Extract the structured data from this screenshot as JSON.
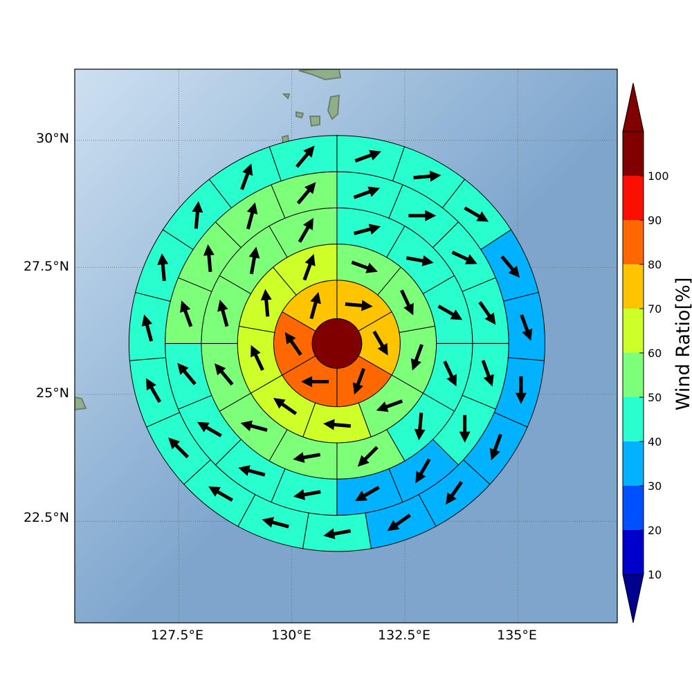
{
  "map": {
    "lon_ticks": [
      "127.5°E",
      "130°E",
      "132.5°E",
      "135°E"
    ],
    "lat_ticks": [
      "30°N",
      "27.5°N",
      "25°N",
      "22.5°N"
    ],
    "ocean_color_light": "#cde0f1",
    "ocean_color_dark": "#7ea6cd",
    "land_color": "#8fae8a"
  },
  "colorbar": {
    "title": "Wind Ratio[%]",
    "levels": [
      "10",
      "20",
      "30",
      "40",
      "50",
      "60",
      "70",
      "80",
      "90",
      "100"
    ],
    "colors": [
      "#0000cd",
      "#0050ff",
      "#00b2ff",
      "#29ffce",
      "#7dff7a",
      "#ceff29",
      "#ffc400",
      "#ff6800",
      "#fa0f00",
      "#800000"
    ],
    "under_color": "#00008f",
    "over_color": "#800000"
  },
  "chart_data": {
    "type": "polar-sector-map",
    "center_lon": 131.0,
    "center_lat": 26.0,
    "ring_radii_deg": [
      0.55,
      1.4,
      2.2,
      3.0,
      3.8,
      4.6
    ],
    "sector_counts": [
      1,
      6,
      9,
      12,
      16,
      19
    ],
    "center_ratio": 100,
    "rings": [
      {
        "ratios": [
          75,
          75,
          80,
          80,
          80,
          75
        ],
        "wind_dirs": [
          95,
          150,
          200,
          270,
          325,
          15
        ]
      },
      {
        "ratios": [
          55,
          55,
          55,
          55,
          65,
          65,
          65,
          65,
          65
        ],
        "wind_dirs": [
          110,
          155,
          200,
          250,
          275,
          305,
          335,
          355,
          20
        ]
      },
      {
        "ratios": [
          45,
          45,
          45,
          45,
          45,
          55,
          55,
          55,
          55,
          55,
          55,
          55
        ],
        "wind_dirs": [
          75,
          100,
          120,
          155,
          185,
          225,
          260,
          285,
          320,
          345,
          10,
          30
        ]
      },
      {
        "ratios": [
          45,
          45,
          45,
          45,
          45,
          45,
          35,
          35,
          45,
          45,
          45,
          45,
          55,
          55,
          55,
          55
        ],
        "wind_dirs": [
          70,
          90,
          115,
          145,
          160,
          180,
          210,
          240,
          260,
          285,
          300,
          320,
          340,
          355,
          15,
          40
        ]
      },
      {
        "ratios": [
          45,
          45,
          45,
          35,
          35,
          35,
          35,
          35,
          35,
          45,
          45,
          45,
          45,
          45,
          45,
          45,
          45,
          45,
          45
        ],
        "wind_dirs": [
          70,
          85,
          120,
          140,
          160,
          180,
          200,
          215,
          235,
          260,
          285,
          300,
          315,
          330,
          345,
          355,
          5,
          20,
          40
        ]
      }
    ]
  }
}
